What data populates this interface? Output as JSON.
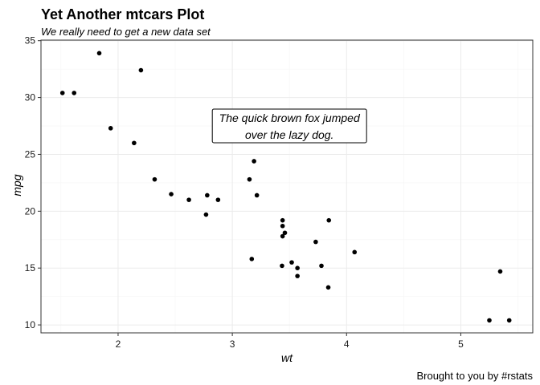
{
  "chart_data": {
    "type": "scatter",
    "title": "Yet Another mtcars Plot",
    "subtitle": "We really need to get a new data set",
    "caption": "Brought to you by #rstats",
    "xlabel": "wt",
    "ylabel": "mpg",
    "xlim": [
      1.325,
      5.63
    ],
    "ylim": [
      9.3,
      35.05
    ],
    "x_ticks": [
      2,
      3,
      4,
      5
    ],
    "y_ticks": [
      10,
      15,
      20,
      25,
      30,
      35
    ],
    "grid": true,
    "point_color": "#000000",
    "annotation": {
      "lines": [
        "The quick brown fox jumped",
        "over the lazy dog."
      ],
      "x": 3.5,
      "y": 27.5
    },
    "points": [
      {
        "x": 2.62,
        "y": 21.0
      },
      {
        "x": 2.875,
        "y": 21.0
      },
      {
        "x": 2.32,
        "y": 22.8
      },
      {
        "x": 3.215,
        "y": 21.4
      },
      {
        "x": 3.44,
        "y": 18.7
      },
      {
        "x": 3.46,
        "y": 18.1
      },
      {
        "x": 3.57,
        "y": 14.3
      },
      {
        "x": 3.19,
        "y": 24.4
      },
      {
        "x": 3.15,
        "y": 22.8
      },
      {
        "x": 3.44,
        "y": 19.2
      },
      {
        "x": 3.44,
        "y": 17.8
      },
      {
        "x": 4.07,
        "y": 16.4
      },
      {
        "x": 3.73,
        "y": 17.3
      },
      {
        "x": 3.78,
        "y": 15.2
      },
      {
        "x": 5.25,
        "y": 10.4
      },
      {
        "x": 5.424,
        "y": 10.4
      },
      {
        "x": 5.345,
        "y": 14.7
      },
      {
        "x": 2.2,
        "y": 32.4
      },
      {
        "x": 1.615,
        "y": 30.4
      },
      {
        "x": 1.835,
        "y": 33.9
      },
      {
        "x": 2.465,
        "y": 21.5
      },
      {
        "x": 3.52,
        "y": 15.5
      },
      {
        "x": 3.435,
        "y": 15.2
      },
      {
        "x": 3.84,
        "y": 13.3
      },
      {
        "x": 3.845,
        "y": 19.2
      },
      {
        "x": 1.935,
        "y": 27.3
      },
      {
        "x": 2.14,
        "y": 26.0
      },
      {
        "x": 1.513,
        "y": 30.4
      },
      {
        "x": 3.17,
        "y": 15.8
      },
      {
        "x": 2.77,
        "y": 19.7
      },
      {
        "x": 3.57,
        "y": 15.0
      },
      {
        "x": 2.78,
        "y": 21.4
      }
    ]
  }
}
